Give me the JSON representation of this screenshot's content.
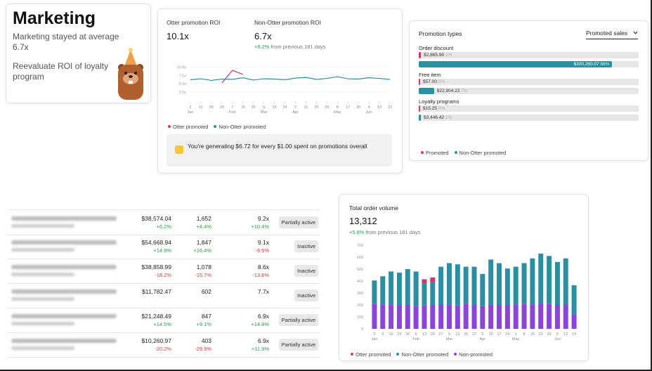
{
  "summary": {
    "title": "Marketing",
    "text1": "Marketing stayed at average 6.7x",
    "text2": "Reevaluate ROI of loyalty program"
  },
  "roi": {
    "metrics": [
      {
        "label": "Otter promotion ROI",
        "value": "10.1x"
      },
      {
        "label": "Non-Otter promotion ROI",
        "value": "6.7x",
        "change": "+8.2%",
        "change_note": "from previous 181 days"
      }
    ],
    "callout": "You're generating $6.72 for every $1.00 spent on promotions overall"
  },
  "chart_data": [
    {
      "type": "line",
      "categories": [
        "2",
        "11",
        "20",
        "29",
        "7",
        "16",
        "25",
        "6",
        "15",
        "24",
        "2",
        "11",
        "20",
        "29",
        "8",
        "17",
        "26",
        "4",
        "13",
        "22"
      ],
      "month_labels": [
        "Jan",
        null,
        null,
        null,
        "Feb",
        null,
        null,
        "Mar",
        null,
        null,
        "Apr",
        null,
        null,
        null,
        "May",
        null,
        null,
        "Jun",
        null,
        null
      ],
      "series": [
        {
          "name": "Otter promoted",
          "color": "#d2386c",
          "values": [
            null,
            null,
            null,
            5.2,
            9.0,
            7.8,
            null,
            null,
            null,
            null,
            null,
            null,
            null,
            null,
            null,
            null,
            null,
            null,
            null,
            null
          ]
        },
        {
          "name": "Non-Otter promoted",
          "color": "#2a8fa0",
          "values": [
            6.2,
            6.5,
            6.0,
            6.4,
            6.3,
            6.8,
            6.1,
            6.5,
            6.4,
            6.2,
            6.7,
            6.9,
            6.3,
            6.6,
            7.1,
            6.5,
            6.4,
            6.8,
            6.6,
            6.3
          ]
        }
      ],
      "ylim": [
        0,
        10.5
      ],
      "yticks": [
        {
          "value": 2.5,
          "label": "2.5x"
        },
        {
          "value": 5,
          "label": "5.0x"
        },
        {
          "value": 7.5,
          "label": "7.5x"
        },
        {
          "value": 10,
          "label": "10.0x"
        }
      ],
      "grid": true
    },
    {
      "type": "bar",
      "stacked": true,
      "title": "Total order volume",
      "total": "13,312",
      "change": "+5.8%",
      "change_note": "from previous 181 days",
      "categories": [
        "2",
        "9",
        "16",
        "23",
        "30",
        "6",
        "13",
        "20",
        "27",
        "6",
        "13",
        "20",
        "27",
        "3",
        "10",
        "17",
        "24",
        "1",
        "8",
        "15",
        "22",
        "29",
        "5",
        "12",
        "19"
      ],
      "month_labels": [
        "Jan",
        null,
        null,
        null,
        null,
        "Feb",
        null,
        null,
        null,
        "Mar",
        null,
        null,
        null,
        "Apr",
        null,
        null,
        null,
        "May",
        null,
        null,
        null,
        null,
        "Jun",
        null,
        null
      ],
      "series": [
        {
          "name": "Otter promoted",
          "color": "#d2386c",
          "values": [
            0,
            0,
            0,
            0,
            0,
            0,
            35,
            40,
            0,
            0,
            0,
            0,
            0,
            0,
            0,
            0,
            0,
            0,
            0,
            0,
            0,
            0,
            0,
            0,
            0
          ]
        },
        {
          "name": "Non-Otter promoted",
          "color": "#2a8fa0",
          "values": [
            195,
            235,
            275,
            270,
            300,
            290,
            185,
            190,
            320,
            345,
            345,
            310,
            320,
            270,
            375,
            350,
            305,
            315,
            340,
            385,
            415,
            400,
            360,
            390,
            245
          ]
        },
        {
          "name": "Non-promoted",
          "color": "#8b45dc",
          "values": [
            210,
            205,
            205,
            200,
            200,
            190,
            195,
            200,
            200,
            205,
            195,
            210,
            200,
            190,
            205,
            200,
            200,
            205,
            210,
            205,
            215,
            210,
            200,
            200,
            120
          ]
        }
      ],
      "ylim": [
        0,
        700
      ],
      "yticks": [
        0,
        100,
        200,
        300,
        400,
        500,
        600,
        700
      ],
      "grid": false
    }
  ],
  "promotion_types": {
    "title": "Promotion types",
    "dropdown": "Promoted sales",
    "xlim": [
      0,
      100
    ],
    "colors": [
      "#d2386c",
      "#2a8fa0"
    ],
    "legend": [
      "Promoted",
      "Non-Otter promoted"
    ],
    "groups": [
      {
        "name": "Order discount",
        "values": [
          1,
          88
        ],
        "value_labels": [
          "1%",
          "88%"
        ],
        "amount_labels": [
          "$2,865.99",
          "$300,260.07"
        ]
      },
      {
        "name": "Free item",
        "values": [
          0,
          7
        ],
        "value_labels": [
          "0%",
          "7%"
        ],
        "amount_labels": [
          "$57.00",
          "$22,904.22"
        ]
      },
      {
        "name": "Loyalty programs",
        "values": [
          0,
          1
        ],
        "value_labels": [
          "0%",
          "1%"
        ],
        "amount_labels": [
          "$15.25",
          "$3,446.42"
        ]
      }
    ]
  },
  "table": {
    "rows": [
      {
        "sales": "$38,574.04",
        "sales_change": "+6.2%",
        "orders": "1,652",
        "orders_change": "+4.4%",
        "roi": "9.2x",
        "roi_change": "+10.4%",
        "status": "Partially active"
      },
      {
        "sales": "$54,668.94",
        "sales_change": "+14.9%",
        "orders": "1,847",
        "orders_change": "+16.4%",
        "roi": "9.1x",
        "roi_change": "-9.5%",
        "status": "Inactive"
      },
      {
        "sales": "$38,858.99",
        "sales_change": "-18.2%",
        "orders": "1,078",
        "orders_change": "-15.7%",
        "roi": "8.6x",
        "roi_change": "-13.6%",
        "status": "Inactive"
      },
      {
        "sales": "$11,782.47",
        "orders": "602",
        "roi": "7.7x",
        "status": "Inactive"
      },
      {
        "sales": "$21,248.49",
        "sales_change": "+14.5%",
        "orders": "847",
        "orders_change": "+9.1%",
        "roi": "6.9x",
        "roi_change": "+14.9%",
        "status": "Partially active"
      },
      {
        "sales": "$10,260.97",
        "sales_change": "-20.2%",
        "orders": "403",
        "orders_change": "-29.9%",
        "roi": "6.9x",
        "roi_change": "+11.9%",
        "status": "Partially active"
      }
    ]
  }
}
